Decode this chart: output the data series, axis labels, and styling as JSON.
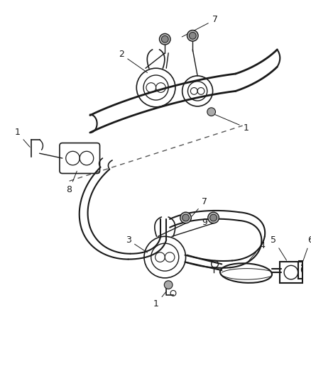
{
  "bg_color": "#ffffff",
  "line_color": "#1a1a1a",
  "dash_color": "#555555",
  "fig_w": 4.38,
  "fig_h": 5.33,
  "dpi": 100
}
